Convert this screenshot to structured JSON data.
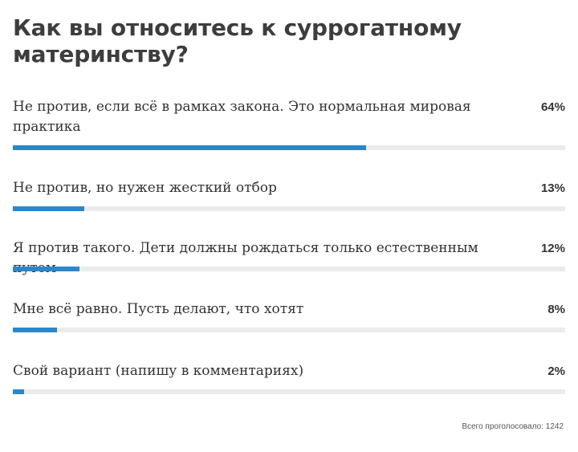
{
  "poll": {
    "title": "Как вы относитесь к суррогатному материнству?",
    "options": [
      {
        "label": "Не против, если всё в рамках закона. Это нормальная мировая практика",
        "percent_text": "64%",
        "value": 64
      },
      {
        "label": "Не против, но нужен жесткий отбор",
        "percent_text": "13%",
        "value": 13
      },
      {
        "label": "Я против такого. Дети должны рождаться только естественным путем",
        "percent_text": "12%",
        "value": 12
      },
      {
        "label": "Мне всё равно. Пусть делают, что хотят",
        "percent_text": "8%",
        "value": 8
      },
      {
        "label": "Свой вариант (напишу в комментариях)",
        "percent_text": "2%",
        "value": 2
      }
    ],
    "total_label": "Всего проголосовало: 1242"
  },
  "colors": {
    "bar_fill": "#2c86c8",
    "bar_track": "#ebebeb",
    "text": "#333333"
  }
}
